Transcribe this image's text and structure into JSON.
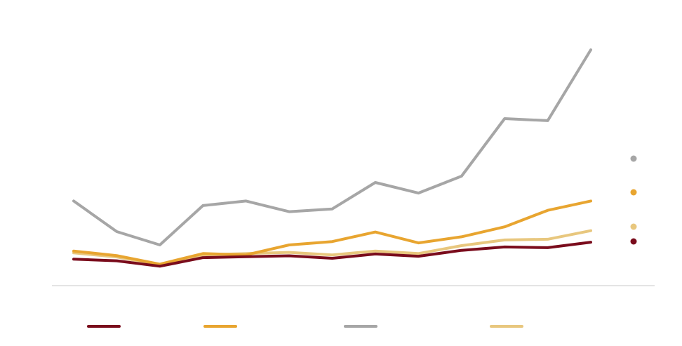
{
  "chart_data": {
    "type": "line",
    "title": "",
    "xlabel": "",
    "ylabel": "",
    "x": [
      1,
      2,
      3,
      4,
      5,
      6,
      7,
      8,
      9,
      10,
      11,
      12,
      13
    ],
    "ylim": [
      0,
      100
    ],
    "grid": false,
    "legend": "bottom",
    "series": [
      {
        "color": "#7a0c1c",
        "values": [
          7.5,
          6.8,
          4.4,
          8.2,
          8.6,
          9.0,
          7.9,
          9.8,
          8.8,
          11.4,
          12.9,
          12.6,
          15.0
        ]
      },
      {
        "color": "#e8a530",
        "values": [
          11.1,
          9.1,
          5.3,
          10.0,
          9.4,
          13.8,
          15.3,
          19.5,
          14.7,
          17.4,
          21.8,
          29.1,
          33.2
        ]
      },
      {
        "color": "#a6a6a6",
        "values": [
          33.2,
          19.7,
          13.8,
          31.2,
          33.2,
          28.5,
          29.7,
          41.4,
          36.7,
          44.2,
          69.6,
          68.7,
          100.0
        ]
      },
      {
        "color": "#e8c77e",
        "values": [
          10.3,
          8.5,
          5.1,
          9.4,
          10.0,
          10.5,
          9.4,
          11.1,
          10.0,
          13.5,
          16.0,
          16.3,
          20.1
        ]
      }
    ],
    "end_markers": true
  }
}
